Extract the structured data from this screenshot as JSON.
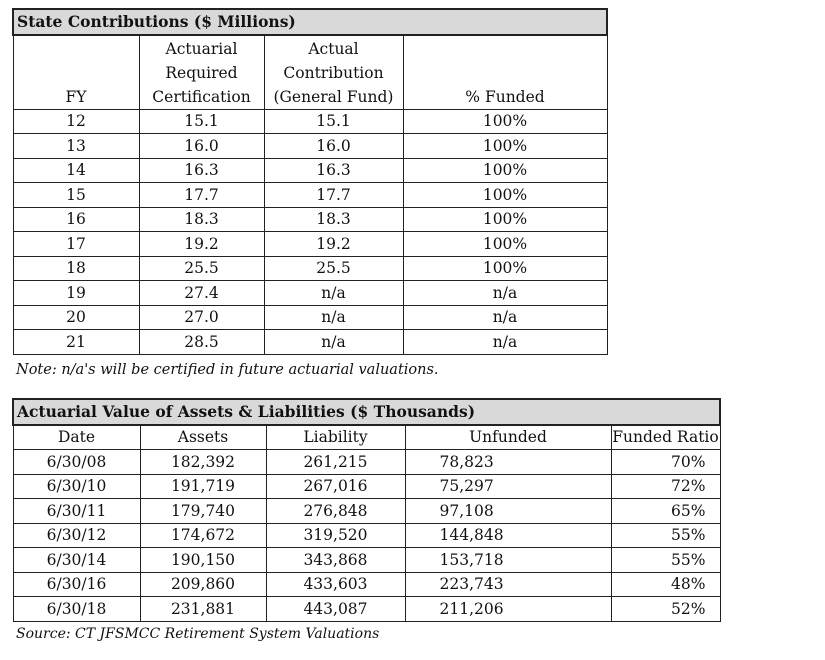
{
  "state_contributions": {
    "title": "State Contributions  ($ Millions)",
    "headers": [
      "FY",
      "Actuarial Required Certification",
      "Actual Contribution (General Fund)",
      "% Funded"
    ],
    "header_lines": [
      [
        "FY"
      ],
      [
        "Actuarial",
        "Required",
        "Certification"
      ],
      [
        "Actual",
        "Contribution",
        "(General Fund)"
      ],
      [
        "% Funded"
      ]
    ],
    "rows": [
      [
        "12",
        "15.1",
        "15.1",
        "100%"
      ],
      [
        "13",
        "16.0",
        "16.0",
        "100%"
      ],
      [
        "14",
        "16.3",
        "16.3",
        "100%"
      ],
      [
        "15",
        "17.7",
        "17.7",
        "100%"
      ],
      [
        "16",
        "18.3",
        "18.3",
        "100%"
      ],
      [
        "17",
        "19.2",
        "19.2",
        "100%"
      ],
      [
        "18",
        "25.5",
        "25.5",
        "100%"
      ],
      [
        "19",
        "27.4",
        "n/a",
        "n/a"
      ],
      [
        "20",
        "27.0",
        "n/a",
        "n/a"
      ],
      [
        "21",
        "28.5",
        "n/a",
        "n/a"
      ]
    ],
    "note": "Note: n/a's will be certified in future actuarial valuations."
  },
  "assets_liabilities": {
    "title": "Actuarial Value of Assets & Liabilities ($ Thousands)",
    "headers": [
      "Date",
      "Assets",
      "Liability",
      "Unfunded",
      "Funded Ratio"
    ],
    "rows": [
      [
        "6/30/08",
        "182,392",
        "261,215",
        "78,823",
        "70%"
      ],
      [
        "6/30/10",
        "191,719",
        "267,016",
        "75,297",
        "72%"
      ],
      [
        "6/30/11",
        "179,740",
        "276,848",
        "97,108",
        "65%"
      ],
      [
        "6/30/12",
        "174,672",
        "319,520",
        "144,848",
        "55%"
      ],
      [
        "6/30/14",
        "190,150",
        "343,868",
        "153,718",
        "55%"
      ],
      [
        "6/30/16",
        "209,860",
        "433,603",
        "223,743",
        "48%"
      ],
      [
        "6/30/18",
        "231,881",
        "443,087",
        "211,206",
        "52%"
      ]
    ],
    "source": "Source: CT JFSMCC Retirement System Valuations"
  }
}
